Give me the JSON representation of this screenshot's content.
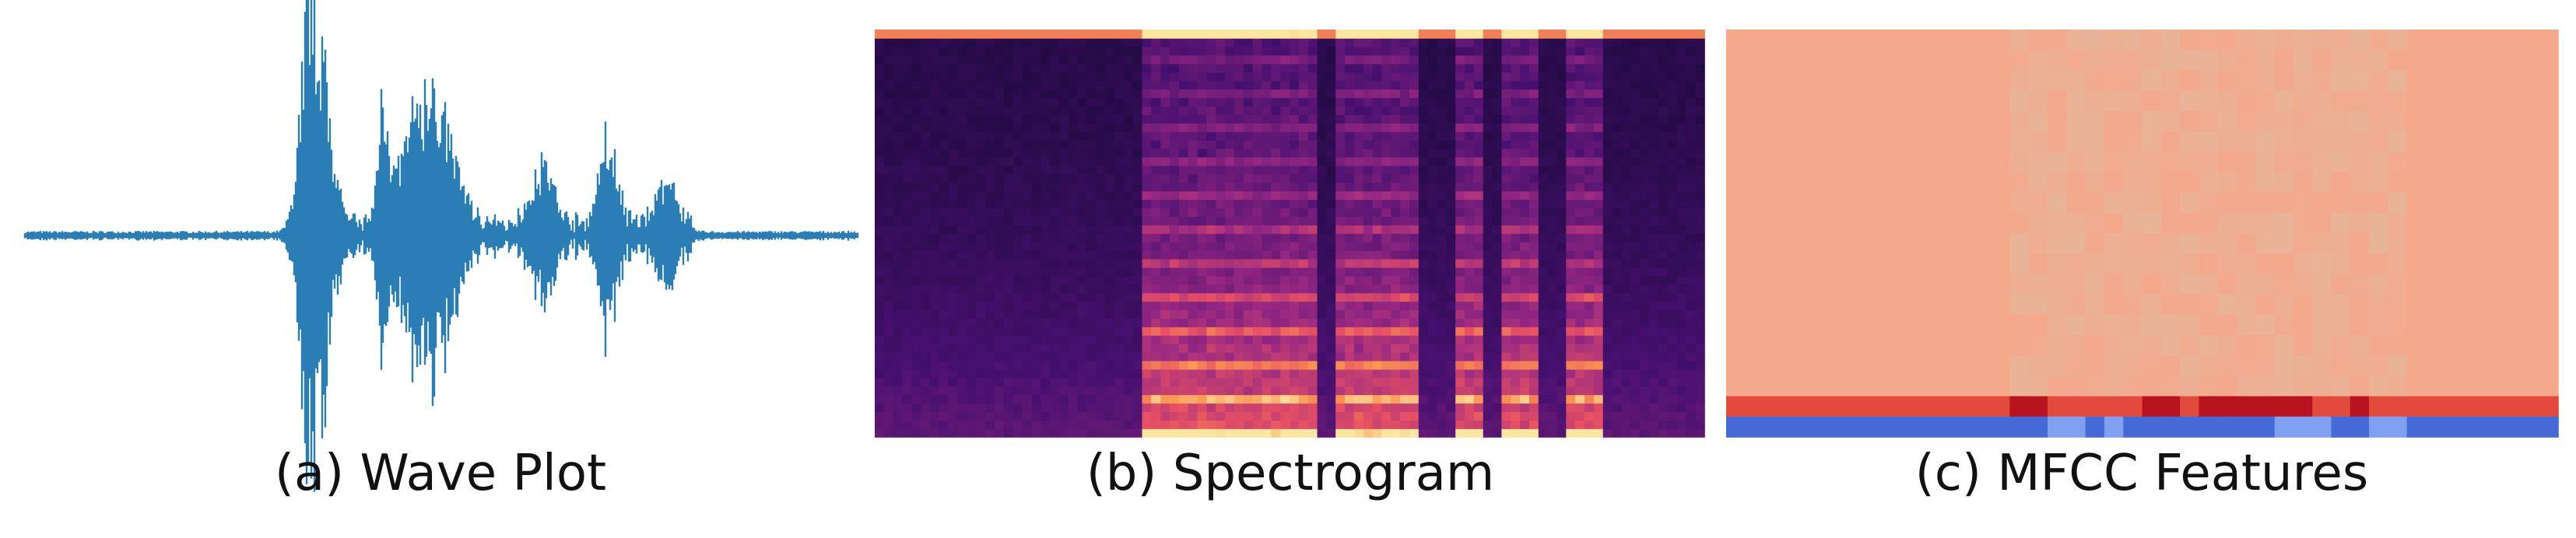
{
  "panels": [
    {
      "caption": "(a) Wave Plot"
    },
    {
      "caption": "(b) Spectrogram"
    },
    {
      "caption": "(c) MFCC Features"
    }
  ]
}
